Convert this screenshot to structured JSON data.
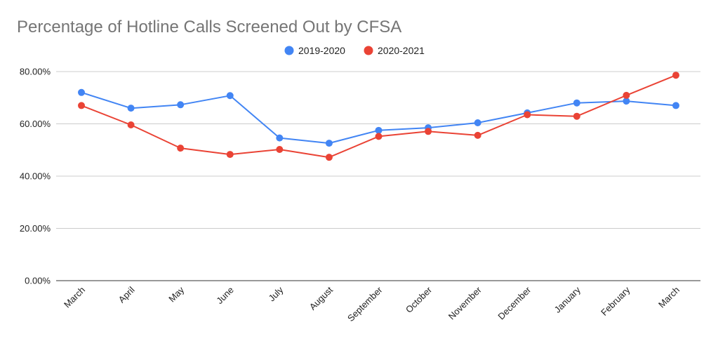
{
  "chart_data": {
    "type": "line",
    "title": "Percentage of Hotline Calls Screened Out by CFSA",
    "xlabel": "",
    "ylabel": "",
    "categories": [
      "March",
      "April",
      "May",
      "June",
      "July",
      "August",
      "September",
      "October",
      "November",
      "December",
      "January",
      "February",
      "March"
    ],
    "ylim": [
      0,
      80
    ],
    "yticks": [
      0,
      20,
      40,
      60,
      80
    ],
    "ytick_labels": [
      "0.00%",
      "20.00%",
      "40.00%",
      "60.00%",
      "80.00%"
    ],
    "grid": true,
    "legend_position": "top-center",
    "series": [
      {
        "name": "2019-2020",
        "color": "#4285f4",
        "values": [
          72.0,
          66.0,
          67.3,
          70.8,
          54.6,
          52.6,
          57.5,
          58.5,
          60.4,
          64.2,
          68.0,
          68.7,
          67.0
        ]
      },
      {
        "name": "2020-2021",
        "color": "#ea4335",
        "values": [
          67.0,
          59.6,
          50.7,
          48.3,
          50.2,
          47.2,
          55.2,
          57.1,
          55.6,
          63.5,
          62.9,
          70.9,
          78.6
        ]
      }
    ]
  }
}
